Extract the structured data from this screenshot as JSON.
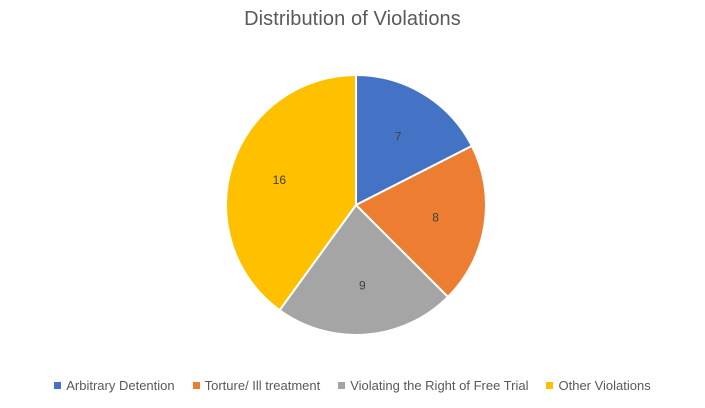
{
  "chart_data": {
    "type": "pie",
    "title": "Distribution of Violations",
    "categories": [
      "Arbitrary Detention",
      "Torture/ Ill treatment",
      "Violating the Right of Free Trial",
      "Other Violations"
    ],
    "values": [
      7,
      8,
      9,
      16
    ],
    "colors": [
      "#4472C4",
      "#ED7D31",
      "#A5A5A5",
      "#FFC000"
    ],
    "data_labels": [
      "7",
      "8",
      "9",
      "16"
    ],
    "legend_position": "bottom",
    "start_angle": "12 o'clock",
    "direction": "clockwise"
  }
}
